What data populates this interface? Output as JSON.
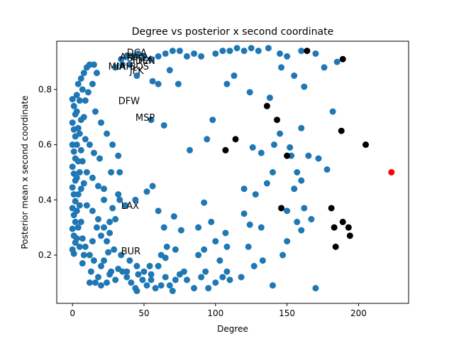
{
  "chart_data": {
    "type": "scatter",
    "title": "Degree vs posterior x second coordinate",
    "xlabel": "Degree",
    "ylabel": "Posterior mean x second coordinate",
    "xlim": [
      -11,
      235
    ],
    "ylim": [
      0.025,
      0.975
    ],
    "xticks": [
      0,
      50,
      100,
      150,
      200
    ],
    "xtick_labels": [
      "0",
      "50",
      "100",
      "150",
      "200"
    ],
    "yticks": [
      0.2,
      0.4,
      0.6,
      0.8
    ],
    "ytick_labels": [
      "0.2",
      "0.4",
      "0.6",
      "0.8"
    ],
    "grid": false,
    "colors": {
      "default": "#1f77b4",
      "highlight": "#000000",
      "special": "#ff0000"
    },
    "series": [
      {
        "role": "default",
        "points": [
          [
            0,
            0.765
          ],
          [
            1,
            0.74
          ],
          [
            2,
            0.71
          ],
          [
            0,
            0.68
          ],
          [
            1,
            0.655
          ],
          [
            2,
            0.63
          ],
          [
            0,
            0.6
          ],
          [
            1,
            0.575
          ],
          [
            2,
            0.55
          ],
          [
            0,
            0.52
          ],
          [
            1,
            0.495
          ],
          [
            2,
            0.47
          ],
          [
            0,
            0.445
          ],
          [
            1,
            0.42
          ],
          [
            2,
            0.395
          ],
          [
            0,
            0.37
          ],
          [
            1,
            0.345
          ],
          [
            2,
            0.32
          ],
          [
            0,
            0.295
          ],
          [
            1,
            0.27
          ],
          [
            2,
            0.245
          ],
          [
            0,
            0.22
          ],
          [
            1,
            0.205
          ],
          [
            3,
            0.72
          ],
          [
            4,
            0.66
          ],
          [
            3,
            0.6
          ],
          [
            4,
            0.54
          ],
          [
            3,
            0.48
          ],
          [
            4,
            0.42
          ],
          [
            3,
            0.36
          ],
          [
            4,
            0.3
          ],
          [
            3,
            0.26
          ],
          [
            5,
            0.76
          ],
          [
            5,
            0.64
          ],
          [
            5,
            0.5
          ],
          [
            5,
            0.38
          ],
          [
            5,
            0.23
          ],
          [
            6,
            0.69
          ],
          [
            6,
            0.58
          ],
          [
            6,
            0.44
          ],
          [
            6,
            0.32
          ],
          [
            7,
            0.8
          ],
          [
            7,
            0.54
          ],
          [
            7,
            0.26
          ],
          [
            8,
            0.7
          ],
          [
            8,
            0.46
          ],
          [
            8,
            0.2
          ],
          [
            3,
            0.78
          ],
          [
            4,
            0.82
          ],
          [
            6,
            0.84
          ],
          [
            8,
            0.86
          ],
          [
            10,
            0.88
          ],
          [
            12,
            0.89
          ],
          [
            15,
            0.89
          ],
          [
            9,
            0.76
          ],
          [
            11,
            0.79
          ],
          [
            14,
            0.82
          ],
          [
            17,
            0.86
          ],
          [
            9,
            0.62
          ],
          [
            12,
            0.6
          ],
          [
            15,
            0.57
          ],
          [
            19,
            0.55
          ],
          [
            10,
            0.5
          ],
          [
            14,
            0.48
          ],
          [
            18,
            0.45
          ],
          [
            22,
            0.44
          ],
          [
            10,
            0.38
          ],
          [
            14,
            0.36
          ],
          [
            18,
            0.33
          ],
          [
            22,
            0.3
          ],
          [
            26,
            0.28
          ],
          [
            9,
            0.23
          ],
          [
            12,
            0.2
          ],
          [
            15,
            0.18
          ],
          [
            7,
            0.17
          ],
          [
            13,
            0.14
          ],
          [
            18,
            0.12
          ],
          [
            24,
            0.1
          ],
          [
            16,
            0.72
          ],
          [
            20,
            0.68
          ],
          [
            24,
            0.64
          ],
          [
            28,
            0.6
          ],
          [
            32,
            0.56
          ],
          [
            27,
            0.5
          ],
          [
            33,
            0.5
          ],
          [
            22,
            0.4
          ],
          [
            28,
            0.37
          ],
          [
            32,
            0.42
          ],
          [
            24,
            0.25
          ],
          [
            29,
            0.22
          ],
          [
            34,
            0.2
          ],
          [
            20,
            0.16
          ],
          [
            26,
            0.13
          ],
          [
            30,
            0.11
          ],
          [
            35,
            0.14
          ],
          [
            38,
            0.12
          ],
          [
            41,
            0.1
          ],
          [
            44,
            0.08
          ],
          [
            46,
            0.13
          ],
          [
            49,
            0.11
          ],
          [
            52,
            0.09
          ],
          [
            55,
            0.13
          ],
          [
            58,
            0.08
          ],
          [
            62,
            0.09
          ],
          [
            65,
            0.12
          ],
          [
            68,
            0.09
          ],
          [
            72,
            0.11
          ],
          [
            75,
            0.13
          ],
          [
            40,
            0.18
          ],
          [
            45,
            0.16
          ],
          [
            50,
            0.14
          ],
          [
            60,
            0.16
          ],
          [
            65,
            0.19
          ],
          [
            72,
            0.22
          ],
          [
            80,
            0.11
          ],
          [
            85,
            0.08
          ],
          [
            90,
            0.12
          ],
          [
            95,
            0.08
          ],
          [
            100,
            0.1
          ],
          [
            105,
            0.12
          ],
          [
            110,
            0.11
          ],
          [
            45,
            0.07
          ],
          [
            55,
            0.11
          ],
          [
            70,
            0.07
          ],
          [
            78,
            0.14
          ],
          [
            88,
            0.2
          ],
          [
            93,
            0.14
          ],
          [
            103,
            0.18
          ],
          [
            108,
            0.14
          ],
          [
            118,
            0.12
          ],
          [
            123,
            0.23
          ],
          [
            127,
            0.16
          ],
          [
            133,
            0.18
          ],
          [
            140,
            0.09
          ],
          [
            147,
            0.2
          ],
          [
            150,
            0.25
          ],
          [
            160,
            0.29
          ],
          [
            170,
            0.08
          ],
          [
            30,
            0.88
          ],
          [
            34,
            0.91
          ],
          [
            38,
            0.92
          ],
          [
            42,
            0.92
          ],
          [
            46,
            0.93
          ],
          [
            50,
            0.92
          ],
          [
            55,
            0.91
          ],
          [
            60,
            0.92
          ],
          [
            65,
            0.93
          ],
          [
            70,
            0.94
          ],
          [
            75,
            0.94
          ],
          [
            80,
            0.92
          ],
          [
            85,
            0.93
          ],
          [
            90,
            0.92
          ],
          [
            100,
            0.93
          ],
          [
            105,
            0.94
          ],
          [
            110,
            0.94
          ],
          [
            115,
            0.95
          ],
          [
            120,
            0.94
          ],
          [
            125,
            0.95
          ],
          [
            130,
            0.94
          ],
          [
            137,
            0.95
          ],
          [
            145,
            0.93
          ],
          [
            150,
            0.92
          ],
          [
            160,
            0.94
          ],
          [
            170,
            0.93
          ],
          [
            176,
            0.88
          ],
          [
            185,
            0.9
          ],
          [
            108,
            0.82
          ],
          [
            113,
            0.85
          ],
          [
            124,
            0.79
          ],
          [
            138,
            0.77
          ],
          [
            146,
            0.88
          ],
          [
            155,
            0.85
          ],
          [
            162,
            0.81
          ],
          [
            60,
            0.82
          ],
          [
            68,
            0.87
          ],
          [
            74,
            0.82
          ],
          [
            56,
            0.83
          ],
          [
            45,
            0.85
          ],
          [
            40,
            0.89
          ],
          [
            35,
            0.89
          ],
          [
            55,
            0.69
          ],
          [
            64,
            0.67
          ],
          [
            82,
            0.58
          ],
          [
            94,
            0.62
          ],
          [
            98,
            0.69
          ],
          [
            126,
            0.59
          ],
          [
            132,
            0.57
          ],
          [
            141,
            0.6
          ],
          [
            152,
            0.59
          ],
          [
            160,
            0.66
          ],
          [
            165,
            0.56
          ],
          [
            172,
            0.55
          ],
          [
            178,
            0.51
          ],
          [
            182,
            0.72
          ],
          [
            145,
            0.64
          ],
          [
            153,
            0.56
          ],
          [
            157,
            0.5
          ],
          [
            160,
            0.47
          ],
          [
            155,
            0.44
          ],
          [
            140,
            0.5
          ],
          [
            136,
            0.46
          ],
          [
            120,
            0.44
          ],
          [
            128,
            0.42
          ],
          [
            132,
            0.3
          ],
          [
            124,
            0.31
          ],
          [
            120,
            0.35
          ],
          [
            107,
            0.28
          ],
          [
            97,
            0.32
          ],
          [
            92,
            0.39
          ],
          [
            88,
            0.3
          ],
          [
            76,
            0.29
          ],
          [
            71,
            0.34
          ],
          [
            64,
            0.3
          ],
          [
            60,
            0.36
          ],
          [
            52,
            0.43
          ],
          [
            56,
            0.45
          ],
          [
            44,
            0.4
          ],
          [
            37,
            0.38
          ],
          [
            33,
            0.4
          ],
          [
            150,
            0.36
          ],
          [
            162,
            0.37
          ],
          [
            157,
            0.32
          ],
          [
            167,
            0.33
          ],
          [
            108,
            0.23
          ],
          [
            100,
            0.25
          ],
          [
            92,
            0.22
          ],
          [
            66,
            0.23
          ],
          [
            62,
            0.2
          ],
          [
            54,
            0.16
          ],
          [
            38,
            0.14
          ],
          [
            30,
            0.33
          ],
          [
            26,
            0.32
          ],
          [
            20,
            0.27
          ],
          [
            17,
            0.3
          ],
          [
            14,
            0.25
          ],
          [
            25,
            0.21
          ],
          [
            22,
            0.18
          ],
          [
            27,
            0.14
          ],
          [
            32,
            0.15
          ],
          [
            12,
            0.1
          ],
          [
            16,
            0.1
          ],
          [
            20,
            0.09
          ]
        ]
      },
      {
        "role": "highlight",
        "points": [
          [
            164,
            0.94
          ],
          [
            189,
            0.91
          ],
          [
            136,
            0.74
          ],
          [
            143,
            0.69
          ],
          [
            188,
            0.65
          ],
          [
            205,
            0.6
          ],
          [
            114,
            0.62
          ],
          [
            107,
            0.58
          ],
          [
            150,
            0.56
          ],
          [
            146,
            0.37
          ],
          [
            181,
            0.37
          ],
          [
            189,
            0.32
          ],
          [
            193,
            0.3
          ],
          [
            194,
            0.27
          ],
          [
            183,
            0.3
          ],
          [
            184,
            0.23
          ]
        ]
      },
      {
        "role": "special",
        "points": [
          [
            223,
            0.5
          ]
        ]
      }
    ],
    "annotations": [
      {
        "text": "DCA",
        "x": 38,
        "y": 0.935
      },
      {
        "text": "ATL",
        "x": 33,
        "y": 0.92
      },
      {
        "text": "SFO",
        "x": 38,
        "y": 0.915
      },
      {
        "text": "PHX",
        "x": 42,
        "y": 0.91
      },
      {
        "text": "DEN",
        "x": 44,
        "y": 0.905
      },
      {
        "text": "MIA",
        "x": 25,
        "y": 0.885
      },
      {
        "text": "IAH",
        "x": 31,
        "y": 0.885
      },
      {
        "text": "BOS",
        "x": 40,
        "y": 0.885
      },
      {
        "text": "JFK",
        "x": 40,
        "y": 0.87
      },
      {
        "text": "DFW",
        "x": 32,
        "y": 0.76
      },
      {
        "text": "MSP",
        "x": 44,
        "y": 0.7
      },
      {
        "text": "LAX",
        "x": 34,
        "y": 0.38
      },
      {
        "text": "BUR",
        "x": 34,
        "y": 0.215
      }
    ]
  }
}
